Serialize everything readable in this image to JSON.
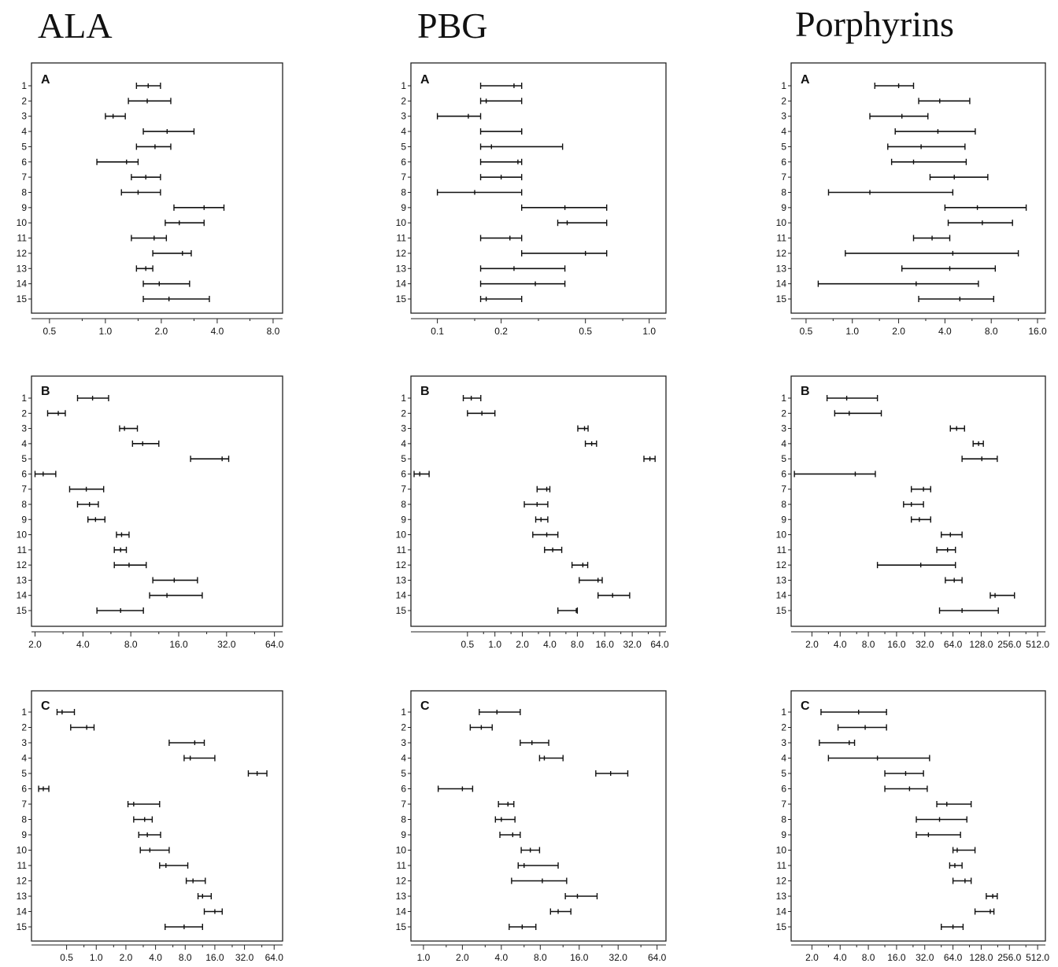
{
  "columns": [
    "ALA",
    "PBG",
    "Porphyrins"
  ],
  "chart_data": [
    {
      "type": "interval",
      "column": "ALA",
      "panel": "A",
      "categories": [
        "1",
        "2",
        "3",
        "4",
        "5",
        "6",
        "7",
        "8",
        "9",
        "10",
        "11",
        "12",
        "13",
        "14",
        "15"
      ],
      "xticks": [
        0.5,
        1.0,
        2.0,
        4.0,
        8.0
      ],
      "xtick_labels": [
        "0.5",
        "1.0",
        "2.0",
        "4.0",
        "8.0"
      ],
      "xlim": [
        0.4,
        9.0
      ],
      "log": true,
      "intervals": [
        [
          1.47,
          1.98
        ],
        [
          1.33,
          2.25
        ],
        [
          1.0,
          1.28
        ],
        [
          1.6,
          3.0
        ],
        [
          1.47,
          2.25
        ],
        [
          0.9,
          1.5
        ],
        [
          1.38,
          1.98
        ],
        [
          1.22,
          1.98
        ],
        [
          2.34,
          4.35
        ],
        [
          2.1,
          3.4
        ],
        [
          1.38,
          2.13
        ],
        [
          1.8,
          2.9
        ],
        [
          1.47,
          1.8
        ],
        [
          1.6,
          2.84
        ],
        [
          1.6,
          3.63
        ]
      ],
      "medians": [
        1.7,
        1.68,
        1.1,
        2.15,
        1.85,
        1.3,
        1.65,
        1.5,
        3.4,
        2.5,
        1.83,
        2.6,
        1.65,
        1.95,
        2.2
      ]
    },
    {
      "type": "interval",
      "column": "PBG",
      "panel": "A",
      "categories": [
        "1",
        "2",
        "3",
        "4",
        "5",
        "6",
        "7",
        "8",
        "9",
        "10",
        "11",
        "12",
        "13",
        "14",
        "15"
      ],
      "xticks": [
        0.1,
        0.2,
        0.5,
        1.0
      ],
      "xtick_labels": [
        "0.1",
        "0.2",
        "0.5",
        "1.0"
      ],
      "xlim": [
        0.075,
        1.2
      ],
      "log": true,
      "intervals": [
        [
          0.16,
          0.25
        ],
        [
          0.16,
          0.25
        ],
        [
          0.1,
          0.16
        ],
        [
          0.16,
          0.25
        ],
        [
          0.16,
          0.39
        ],
        [
          0.16,
          0.25
        ],
        [
          0.16,
          0.25
        ],
        [
          0.1,
          0.25
        ],
        [
          0.25,
          0.63
        ],
        [
          0.37,
          0.63
        ],
        [
          0.16,
          0.25
        ],
        [
          0.25,
          0.63
        ],
        [
          0.16,
          0.4
        ],
        [
          0.16,
          0.4
        ],
        [
          0.16,
          0.25
        ]
      ],
      "medians": [
        0.23,
        0.17,
        0.14,
        0.25,
        0.18,
        0.24,
        0.2,
        0.15,
        0.4,
        0.41,
        0.22,
        0.5,
        0.23,
        0.29,
        0.17
      ]
    },
    {
      "type": "interval",
      "column": "Porphyrins",
      "panel": "A",
      "categories": [
        "1",
        "2",
        "3",
        "4",
        "5",
        "6",
        "7",
        "8",
        "9",
        "10",
        "11",
        "12",
        "13",
        "14",
        "15"
      ],
      "xticks": [
        0.5,
        1.0,
        2.0,
        4.0,
        8.0,
        16.0
      ],
      "xtick_labels": [
        "0.5",
        "1.0",
        "2.0",
        "4.0",
        "8.0",
        "16.0"
      ],
      "xlim": [
        0.4,
        18.0
      ],
      "log": true,
      "intervals": [
        [
          1.4,
          2.5
        ],
        [
          2.7,
          5.8
        ],
        [
          1.3,
          3.1
        ],
        [
          1.9,
          6.3
        ],
        [
          1.7,
          5.4
        ],
        [
          1.8,
          5.5
        ],
        [
          3.2,
          7.6
        ],
        [
          0.7,
          4.5
        ],
        [
          4.0,
          13.5
        ],
        [
          4.2,
          11.0
        ],
        [
          2.5,
          4.3
        ],
        [
          0.9,
          12.0
        ],
        [
          2.1,
          8.5
        ],
        [
          0.6,
          6.6
        ],
        [
          2.7,
          8.3
        ]
      ],
      "medians": [
        2.0,
        3.7,
        2.1,
        3.6,
        2.8,
        2.5,
        4.6,
        1.3,
        6.5,
        7.0,
        3.3,
        4.5,
        4.3,
        2.6,
        5.0
      ]
    },
    {
      "type": "interval",
      "column": "ALA",
      "panel": "B",
      "categories": [
        "1",
        "2",
        "3",
        "4",
        "5",
        "6",
        "7",
        "8",
        "9",
        "10",
        "11",
        "12",
        "13",
        "14",
        "15"
      ],
      "xticks": [
        2.0,
        4.0,
        8.0,
        16.0,
        32.0,
        64.0
      ],
      "xtick_labels": [
        "2.0",
        "4.0",
        "8.0",
        "16.0",
        "32.0",
        "64.0"
      ],
      "xlim": [
        1.9,
        72.0
      ],
      "log": true,
      "intervals": [
        [
          3.7,
          5.8
        ],
        [
          2.4,
          3.1
        ],
        [
          6.8,
          8.8
        ],
        [
          8.2,
          12.0
        ],
        [
          19.0,
          33.0
        ],
        [
          2.0,
          2.7
        ],
        [
          3.3,
          5.4
        ],
        [
          3.7,
          5.0
        ],
        [
          4.3,
          5.5
        ],
        [
          6.5,
          7.8
        ],
        [
          6.3,
          7.5
        ],
        [
          6.3,
          10.0
        ],
        [
          11.0,
          21.0
        ],
        [
          10.5,
          22.5
        ],
        [
          4.9,
          9.6
        ]
      ],
      "medians": [
        4.6,
        2.8,
        7.3,
        9.5,
        30.0,
        2.25,
        4.2,
        4.4,
        4.8,
        7.0,
        6.9,
        7.8,
        15.0,
        13.5,
        6.9
      ]
    },
    {
      "type": "interval",
      "column": "PBG",
      "panel": "B",
      "categories": [
        "1",
        "2",
        "3",
        "4",
        "5",
        "6",
        "7",
        "8",
        "9",
        "10",
        "11",
        "12",
        "13",
        "14",
        "15"
      ],
      "xticks": [
        0.5,
        1.0,
        2.0,
        4.0,
        8.0,
        16.0,
        32.0,
        64.0
      ],
      "xtick_labels": [
        "0.5",
        "1.0",
        "2.0",
        "4.0",
        "8.0",
        "16.0",
        "32.0",
        "64.0"
      ],
      "xlim": [
        0.12,
        75.0
      ],
      "log": true,
      "intervals": [
        [
          0.45,
          0.7
        ],
        [
          0.5,
          1.0
        ],
        [
          8.1,
          10.5
        ],
        [
          9.8,
          13.0
        ],
        [
          43.0,
          57.0
        ],
        [
          0.13,
          0.19
        ],
        [
          2.9,
          4.0
        ],
        [
          2.1,
          3.8
        ],
        [
          2.8,
          3.8
        ],
        [
          2.6,
          4.9
        ],
        [
          3.5,
          5.4
        ],
        [
          7.0,
          10.4
        ],
        [
          8.4,
          15.0
        ],
        [
          13.5,
          30.0
        ],
        [
          4.9,
          8.0
        ]
      ],
      "medians": [
        0.55,
        0.72,
        9.6,
        11.5,
        50.0,
        0.15,
        3.7,
        2.9,
        3.2,
        3.7,
        4.3,
        9.2,
        13.5,
        19.5,
        7.8
      ]
    },
    {
      "type": "interval",
      "column": "Porphyrins",
      "panel": "B",
      "categories": [
        "1",
        "2",
        "3",
        "4",
        "5",
        "6",
        "7",
        "8",
        "9",
        "10",
        "11",
        "12",
        "13",
        "14",
        "15"
      ],
      "xticks": [
        2.0,
        4.0,
        8.0,
        16.0,
        32.0,
        64.0,
        128.0,
        256.0,
        512.0
      ],
      "xtick_labels": [
        "2.0",
        "4.0",
        "8.0",
        "16.0",
        "32.0",
        "64.0",
        "128.0",
        "256.0",
        "512.0"
      ],
      "xlim": [
        1.2,
        620.0
      ],
      "log": true,
      "intervals": [
        [
          2.9,
          10.0
        ],
        [
          3.5,
          11.0
        ],
        [
          60.0,
          85.0
        ],
        [
          105.0,
          135.0
        ],
        [
          80.0,
          190.0
        ],
        [
          1.3,
          9.5
        ],
        [
          23.0,
          37.0
        ],
        [
          19.0,
          31.0
        ],
        [
          23.0,
          37.0
        ],
        [
          48.0,
          80.0
        ],
        [
          43.0,
          68.0
        ],
        [
          10.0,
          68.0
        ],
        [
          53.0,
          80.0
        ],
        [
          160.0,
          290.0
        ],
        [
          46.0,
          195.0
        ]
      ],
      "medians": [
        4.7,
        5.0,
        70.0,
        120.0,
        130.0,
        5.8,
        31.0,
        23.0,
        28.0,
        60.0,
        56.0,
        29.0,
        66.0,
        180.0,
        80.0
      ]
    },
    {
      "type": "interval",
      "column": "ALA",
      "panel": "C",
      "categories": [
        "1",
        "2",
        "3",
        "4",
        "5",
        "6",
        "7",
        "8",
        "9",
        "10",
        "11",
        "12",
        "13",
        "14",
        "15"
      ],
      "xticks": [
        0.5,
        1.0,
        2.0,
        4.0,
        8.0,
        16.0,
        32.0,
        64.0
      ],
      "xtick_labels": [
        "0.5",
        "1.0",
        "2.0",
        "4.0",
        "8.0",
        "16.0",
        "32.0",
        "64.0"
      ],
      "xlim": [
        0.22,
        78.0
      ],
      "log": true,
      "intervals": [
        [
          0.4,
          0.6
        ],
        [
          0.55,
          0.95
        ],
        [
          5.5,
          12.5
        ],
        [
          7.8,
          16.0
        ],
        [
          35.0,
          54.0
        ],
        [
          0.26,
          0.33
        ],
        [
          2.1,
          4.4
        ],
        [
          2.4,
          3.7
        ],
        [
          2.7,
          4.5
        ],
        [
          2.8,
          5.5
        ],
        [
          4.4,
          8.5
        ],
        [
          8.2,
          12.8
        ],
        [
          10.8,
          14.7
        ],
        [
          12.5,
          19.0
        ],
        [
          5.0,
          12.0
        ]
      ],
      "medians": [
        0.45,
        0.8,
        10.0,
        9.0,
        43.0,
        0.29,
        2.4,
        3.1,
        3.3,
        3.5,
        5.1,
        9.6,
        12.0,
        16.0,
        7.8
      ]
    },
    {
      "type": "interval",
      "column": "PBG",
      "panel": "C",
      "categories": [
        "1",
        "2",
        "3",
        "4",
        "5",
        "6",
        "7",
        "8",
        "9",
        "10",
        "11",
        "12",
        "13",
        "14",
        "15"
      ],
      "xticks": [
        1.0,
        2.0,
        4.0,
        8.0,
        16.0,
        32.0,
        64.0
      ],
      "xtick_labels": [
        "1.0",
        "2.0",
        "4.0",
        "8.0",
        "16.0",
        "32.0",
        "64.0"
      ],
      "xlim": [
        0.8,
        75.0
      ],
      "log": true,
      "intervals": [
        [
          2.7,
          5.6
        ],
        [
          2.3,
          3.4
        ],
        [
          5.6,
          9.3
        ],
        [
          7.9,
          12.0
        ],
        [
          21.5,
          38.0
        ],
        [
          1.3,
          2.4
        ],
        [
          3.8,
          5.0
        ],
        [
          3.6,
          5.1
        ],
        [
          3.9,
          5.6
        ],
        [
          5.7,
          7.9
        ],
        [
          5.4,
          11.0
        ],
        [
          4.8,
          12.8
        ],
        [
          12.5,
          22.0
        ],
        [
          9.6,
          13.8
        ],
        [
          4.6,
          7.4
        ]
      ],
      "medians": [
        3.7,
        2.8,
        6.9,
        8.6,
        28.0,
        2.0,
        4.5,
        4.0,
        4.9,
        6.7,
        6.0,
        8.3,
        15.5,
        11.0,
        5.8
      ]
    },
    {
      "type": "interval",
      "column": "Porphyrins",
      "panel": "C",
      "categories": [
        "1",
        "2",
        "3",
        "4",
        "5",
        "6",
        "7",
        "8",
        "9",
        "10",
        "11",
        "12",
        "13",
        "14",
        "15"
      ],
      "xticks": [
        2.0,
        4.0,
        8.0,
        16.0,
        32.0,
        64.0,
        128.0,
        256.0,
        512.0
      ],
      "xtick_labels": [
        "2.0",
        "4.0",
        "8.0",
        "16.0",
        "32.0",
        "64.0",
        "128.0",
        "256.0",
        "512.0"
      ],
      "xlim": [
        1.2,
        620.0
      ],
      "log": true,
      "intervals": [
        [
          2.5,
          12.5
        ],
        [
          3.8,
          12.5
        ],
        [
          2.4,
          5.7
        ],
        [
          3.0,
          36.0
        ],
        [
          12.0,
          31.0
        ],
        [
          12.0,
          34.0
        ],
        [
          43.0,
          100.0
        ],
        [
          26.0,
          90.0
        ],
        [
          26.0,
          77.0
        ],
        [
          64.0,
          110.0
        ],
        [
          59.0,
          80.0
        ],
        [
          64.0,
          100.0
        ],
        [
          145.0,
          190.0
        ],
        [
          110.0,
          175.0
        ],
        [
          48.0,
          82.0
        ]
      ],
      "medians": [
        6.3,
        7.4,
        5.0,
        10.0,
        20.0,
        22.0,
        55.0,
        46.0,
        35.0,
        71.0,
        67.0,
        86.0,
        170.0,
        160.0,
        64.0
      ]
    }
  ]
}
